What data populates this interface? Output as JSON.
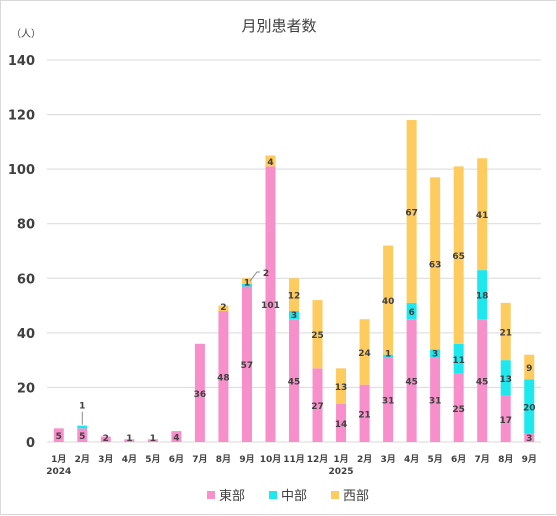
{
  "chart_data": {
    "type": "bar",
    "stacked": true,
    "title": "月別患者数",
    "unit_label": "（人）",
    "categories": [
      "1月",
      "2月",
      "3月",
      "4月",
      "5月",
      "6月",
      "7月",
      "8月",
      "9月",
      "10月",
      "11月",
      "12月",
      "1月",
      "2月",
      "3月",
      "4月",
      "5月",
      "6月",
      "7月",
      "8月",
      "9月"
    ],
    "year_labels": [
      {
        "index": 0,
        "label": "2024"
      },
      {
        "index": 12,
        "label": "2025"
      }
    ],
    "ylim": [
      0,
      140
    ],
    "yticks": [
      "0",
      "20",
      "40",
      "60",
      "80",
      "100",
      "120",
      "140"
    ],
    "grid": true,
    "legend_position": "bottom",
    "series": [
      {
        "name": "東部",
        "color": "#f78fca",
        "values": [
          5,
          5,
          2,
          1,
          1,
          4,
          36,
          48,
          57,
          101,
          45,
          27,
          14,
          21,
          31,
          45,
          31,
          25,
          45,
          17,
          3
        ]
      },
      {
        "name": "中部",
        "color": "#1ce8ee",
        "values": [
          0,
          1,
          0,
          0,
          0,
          0,
          0,
          0,
          1,
          0,
          3,
          0,
          0,
          0,
          1,
          6,
          3,
          11,
          18,
          13,
          20
        ]
      },
      {
        "name": "西部",
        "color": "#fecb5f",
        "values": [
          0,
          0,
          0,
          0,
          0,
          0,
          0,
          2,
          2,
          4,
          12,
          25,
          13,
          24,
          40,
          67,
          63,
          65,
          41,
          21,
          9
        ]
      }
    ],
    "data_labels": [
      {
        "i": 0,
        "s": 0,
        "text": "5"
      },
      {
        "i": 1,
        "s": 0,
        "text": "5"
      },
      {
        "i": 2,
        "s": 0,
        "text": "2"
      },
      {
        "i": 3,
        "s": 0,
        "text": "1"
      },
      {
        "i": 4,
        "s": 0,
        "text": "1"
      },
      {
        "i": 5,
        "s": 0,
        "text": "4"
      },
      {
        "i": 6,
        "s": 0,
        "text": "36"
      },
      {
        "i": 7,
        "s": 0,
        "text": "48"
      },
      {
        "i": 8,
        "s": 0,
        "text": "57"
      },
      {
        "i": 9,
        "s": 0,
        "text": "101"
      },
      {
        "i": 10,
        "s": 0,
        "text": "45"
      },
      {
        "i": 11,
        "s": 0,
        "text": "27"
      },
      {
        "i": 12,
        "s": 0,
        "text": "14"
      },
      {
        "i": 13,
        "s": 0,
        "text": "21"
      },
      {
        "i": 14,
        "s": 0,
        "text": "31"
      },
      {
        "i": 15,
        "s": 0,
        "text": "45"
      },
      {
        "i": 16,
        "s": 0,
        "text": "31"
      },
      {
        "i": 17,
        "s": 0,
        "text": "25"
      },
      {
        "i": 18,
        "s": 0,
        "text": "45"
      },
      {
        "i": 19,
        "s": 0,
        "text": "17"
      },
      {
        "i": 20,
        "s": 0,
        "text": "3"
      },
      {
        "i": 1,
        "s": 1,
        "text": "1",
        "callout": "above"
      },
      {
        "i": 8,
        "s": 1,
        "text": "1"
      },
      {
        "i": 10,
        "s": 1,
        "text": "3"
      },
      {
        "i": 14,
        "s": 1,
        "text": "1"
      },
      {
        "i": 15,
        "s": 1,
        "text": "6"
      },
      {
        "i": 16,
        "s": 1,
        "text": "3"
      },
      {
        "i": 17,
        "s": 1,
        "text": "11"
      },
      {
        "i": 18,
        "s": 1,
        "text": "18"
      },
      {
        "i": 19,
        "s": 1,
        "text": "13"
      },
      {
        "i": 20,
        "s": 1,
        "text": "20"
      },
      {
        "i": 7,
        "s": 2,
        "text": "2"
      },
      {
        "i": 8,
        "s": 2,
        "text": "2",
        "callout": "right"
      },
      {
        "i": 9,
        "s": 2,
        "text": "4"
      },
      {
        "i": 10,
        "s": 2,
        "text": "12"
      },
      {
        "i": 11,
        "s": 2,
        "text": "25"
      },
      {
        "i": 12,
        "s": 2,
        "text": "13"
      },
      {
        "i": 13,
        "s": 2,
        "text": "24"
      },
      {
        "i": 14,
        "s": 2,
        "text": "40"
      },
      {
        "i": 15,
        "s": 2,
        "text": "67"
      },
      {
        "i": 16,
        "s": 2,
        "text": "63"
      },
      {
        "i": 17,
        "s": 2,
        "text": "65"
      },
      {
        "i": 18,
        "s": 2,
        "text": "41"
      },
      {
        "i": 19,
        "s": 2,
        "text": "21"
      },
      {
        "i": 20,
        "s": 2,
        "text": "9"
      }
    ]
  }
}
